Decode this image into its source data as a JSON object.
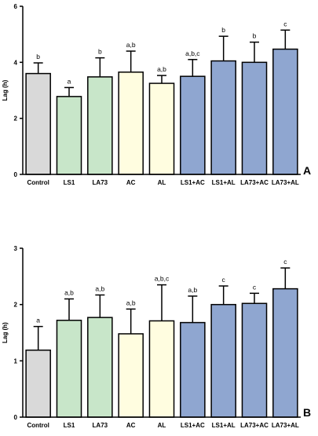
{
  "chart_data": [
    {
      "type": "bar",
      "panel": "A",
      "ylabel": "Lag (h)",
      "ylim": [
        0,
        6
      ],
      "yticks": [
        0,
        2,
        4,
        6
      ],
      "categories": [
        "Control",
        "LS1",
        "LA73",
        "AC",
        "AL",
        "LS1+AC",
        "LS1+AL",
        "LA73+AC",
        "LA73+AL"
      ],
      "values": [
        3.6,
        2.78,
        3.48,
        3.65,
        3.25,
        3.5,
        4.05,
        4.0,
        4.47
      ],
      "errors": [
        0.38,
        0.32,
        0.68,
        0.75,
        0.28,
        0.6,
        0.88,
        0.72,
        0.68
      ],
      "significance": [
        "b",
        "a",
        "b",
        "a,b",
        "a,b",
        "a,b,c",
        "b",
        "b",
        "c"
      ],
      "bar_colors": [
        "#d9d9d9",
        "#c8e6c9",
        "#c8e6c9",
        "#fffde0",
        "#fffde0",
        "#8fa6d0",
        "#8fa6d0",
        "#8fa6d0",
        "#8fa6d0"
      ]
    },
    {
      "type": "bar",
      "panel": "B",
      "ylabel": "Lag (h)",
      "ylim": [
        0,
        3
      ],
      "yticks": [
        0,
        1,
        2,
        3
      ],
      "categories": [
        "Control",
        "LS1",
        "LA73",
        "AC",
        "AL",
        "LS1+AC",
        "LS1+AL",
        "LA73+AC",
        "LA73+AL"
      ],
      "values": [
        1.19,
        1.72,
        1.77,
        1.48,
        1.71,
        1.68,
        2.0,
        2.02,
        2.28
      ],
      "errors": [
        0.42,
        0.38,
        0.4,
        0.44,
        0.64,
        0.47,
        0.33,
        0.18,
        0.37
      ],
      "significance": [
        "a",
        "a,b",
        "a,b",
        "a,b",
        "a,b,c",
        "a,b",
        "c",
        "c",
        "c"
      ],
      "bar_colors": [
        "#d9d9d9",
        "#c8e6c9",
        "#c8e6c9",
        "#fffde0",
        "#fffde0",
        "#8fa6d0",
        "#8fa6d0",
        "#8fa6d0",
        "#8fa6d0"
      ]
    }
  ]
}
